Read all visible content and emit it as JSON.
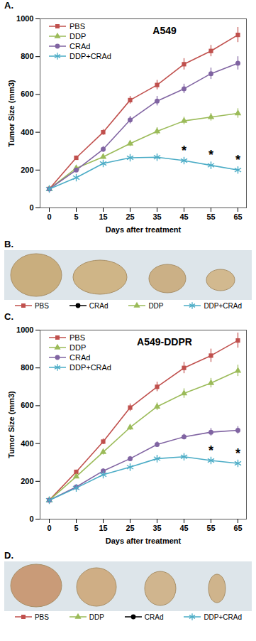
{
  "panel_labels": [
    "A.",
    "B.",
    "C.",
    "D."
  ],
  "chart_data": [
    {
      "type": "line",
      "title": "A549",
      "x_label": "Days after treatment",
      "y_label": "Tumor Size (mm3)",
      "categories": [
        0,
        5,
        15,
        25,
        35,
        45,
        55,
        65
      ],
      "ylim": [
        0,
        1000
      ],
      "yticks": [
        0,
        200,
        400,
        600,
        800,
        1000
      ],
      "grid": false,
      "legend": "top-left",
      "series": [
        {
          "name": "PBS",
          "color": "#c0504d",
          "marker": "square",
          "values": [
            100,
            265,
            400,
            570,
            650,
            760,
            830,
            915
          ],
          "errors": [
            5,
            10,
            15,
            20,
            25,
            30,
            30,
            40
          ]
        },
        {
          "name": "DDP",
          "color": "#9bbb59",
          "marker": "triangle",
          "values": [
            100,
            210,
            270,
            340,
            405,
            460,
            480,
            500
          ],
          "errors": [
            5,
            10,
            12,
            15,
            20,
            20,
            20,
            25
          ]
        },
        {
          "name": "CRAd",
          "color": "#8064a2",
          "marker": "circle",
          "values": [
            100,
            200,
            310,
            465,
            565,
            630,
            710,
            765
          ],
          "errors": [
            5,
            10,
            15,
            20,
            25,
            25,
            30,
            35
          ]
        },
        {
          "name": "DDP+CRAd",
          "color": "#4bacc6",
          "marker": "asterisk",
          "values": [
            100,
            160,
            235,
            265,
            268,
            250,
            225,
            200
          ],
          "errors": [
            5,
            10,
            12,
            15,
            15,
            15,
            15,
            15
          ]
        }
      ],
      "annotations": [
        {
          "x": 45,
          "series": "DDP+CRAd",
          "text": "*"
        },
        {
          "x": 55,
          "series": "DDP+CRAd",
          "text": "*"
        },
        {
          "x": 65,
          "series": "DDP+CRAd",
          "text": "*"
        }
      ]
    },
    {
      "type": "line",
      "title": "A549-DDPR",
      "x_label": "Days after treatment",
      "y_label": "Tumor Size (mm3)",
      "categories": [
        0,
        5,
        15,
        25,
        35,
        45,
        55,
        65
      ],
      "ylim": [
        0,
        1000
      ],
      "yticks": [
        0,
        200,
        400,
        600,
        800,
        1000
      ],
      "grid": false,
      "legend": "top-left",
      "series": [
        {
          "name": "PBS",
          "color": "#c0504d",
          "marker": "square",
          "values": [
            100,
            250,
            410,
            590,
            700,
            800,
            865,
            945
          ],
          "errors": [
            5,
            10,
            15,
            20,
            25,
            30,
            35,
            40
          ]
        },
        {
          "name": "DDP",
          "color": "#9bbb59",
          "marker": "triangle",
          "values": [
            100,
            225,
            355,
            485,
            595,
            665,
            720,
            785
          ],
          "errors": [
            5,
            10,
            15,
            15,
            20,
            25,
            25,
            30
          ]
        },
        {
          "name": "CRAd",
          "color": "#8064a2",
          "marker": "circle",
          "values": [
            100,
            170,
            255,
            320,
            395,
            435,
            460,
            470
          ],
          "errors": [
            5,
            10,
            12,
            12,
            15,
            15,
            20,
            20
          ]
        },
        {
          "name": "DDP+CRAd",
          "color": "#4bacc6",
          "marker": "asterisk",
          "values": [
            100,
            165,
            235,
            275,
            320,
            330,
            310,
            295
          ],
          "errors": [
            5,
            10,
            12,
            15,
            15,
            15,
            15,
            15
          ]
        }
      ],
      "annotations": [
        {
          "x": 55,
          "series": "DDP+CRAd",
          "text": "*"
        },
        {
          "x": 65,
          "series": "DDP+CRAd",
          "text": "*"
        }
      ]
    }
  ],
  "photos": [
    {
      "legend": [
        {
          "name": "PBS",
          "color": "#c0504d",
          "marker": "square"
        },
        {
          "name": "CRAd",
          "color": "#000000",
          "marker": "circle"
        },
        {
          "name": "DDP",
          "color": "#9bbb59",
          "marker": "triangle"
        },
        {
          "name": "DDP+CRAd",
          "color": "#4bacc6",
          "marker": "asterisk"
        }
      ]
    },
    {
      "legend": [
        {
          "name": "PBS",
          "color": "#c0504d",
          "marker": "square"
        },
        {
          "name": "DDP",
          "color": "#9bbb59",
          "marker": "triangle"
        },
        {
          "name": "CRAd",
          "color": "#000000",
          "marker": "circle"
        },
        {
          "name": "DDP+CRAd",
          "color": "#4bacc6",
          "marker": "asterisk"
        }
      ]
    }
  ]
}
